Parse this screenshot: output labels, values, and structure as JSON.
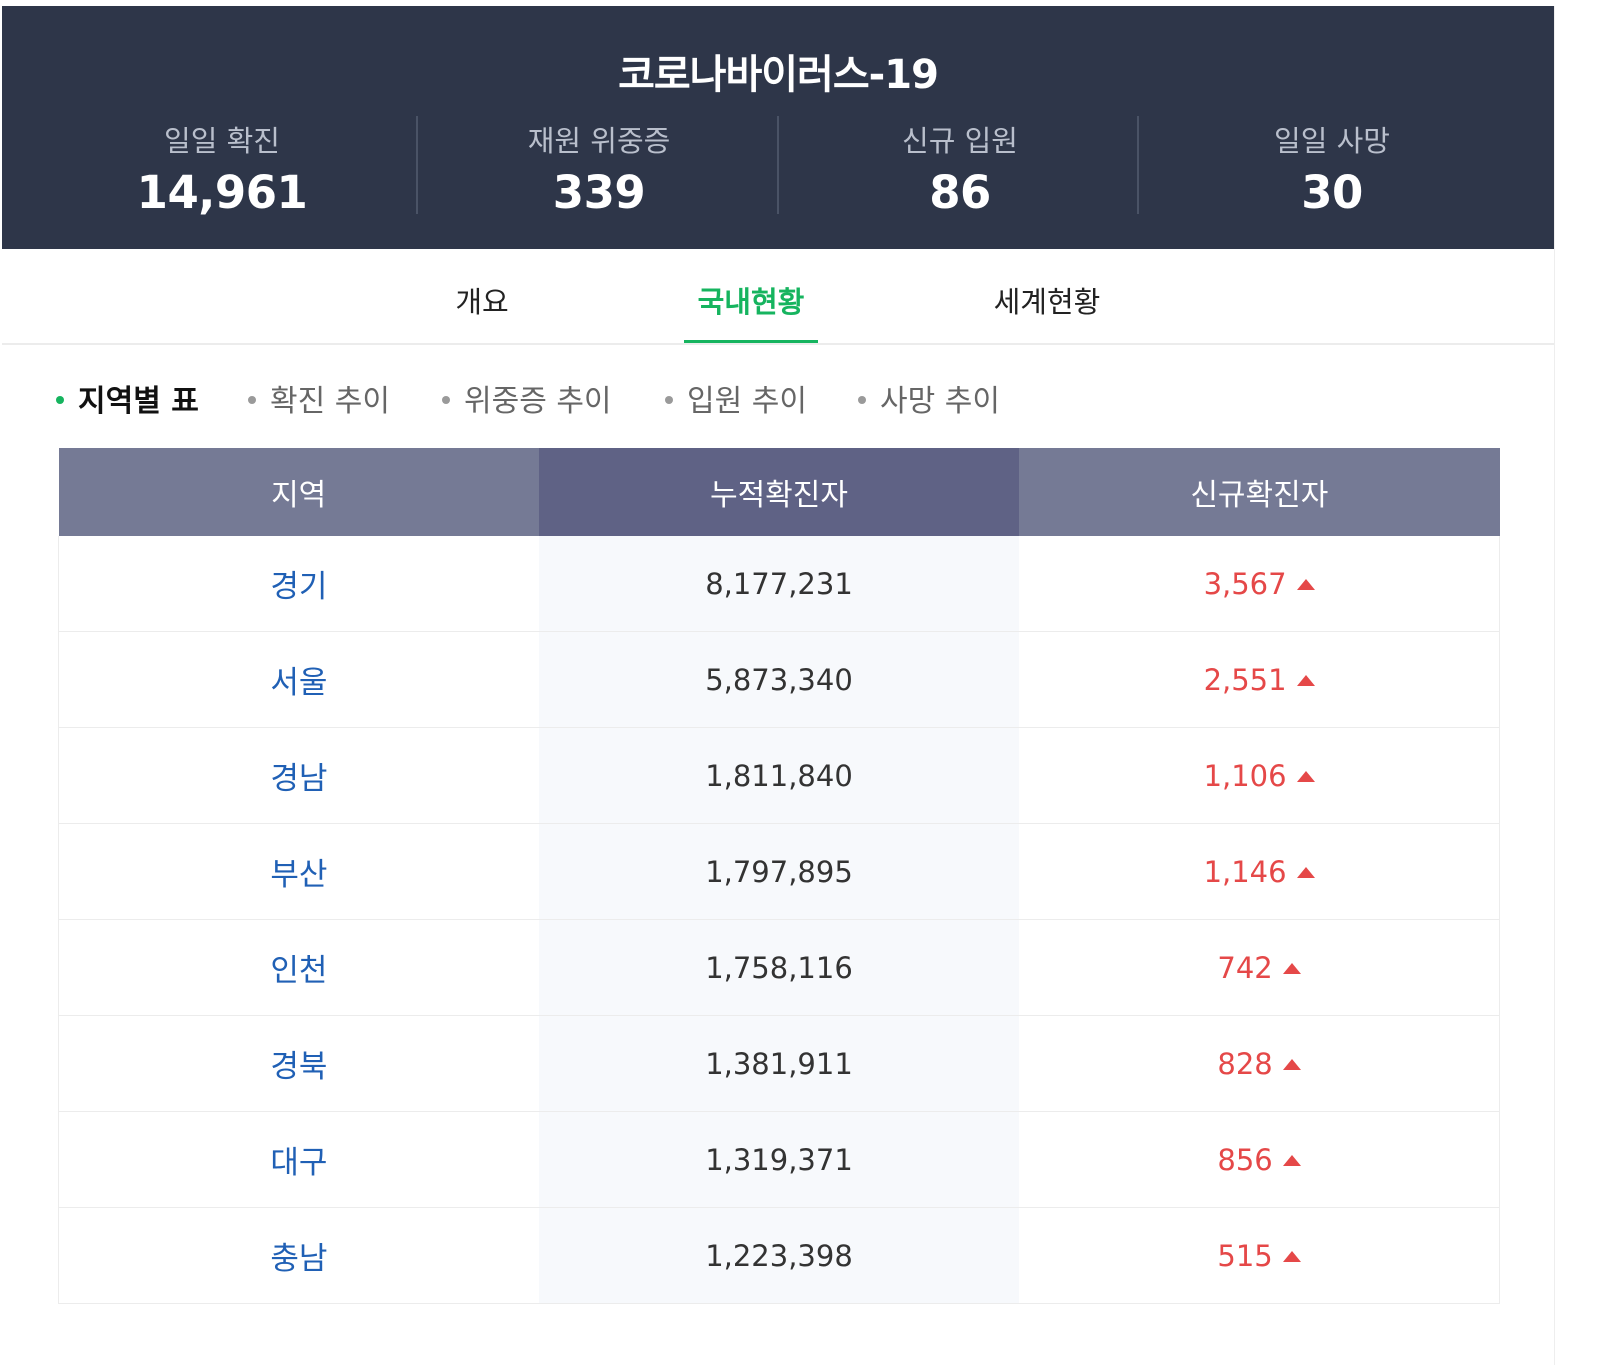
{
  "header": {
    "title": "코로나바이러스-19",
    "stats": [
      {
        "label": "일일 확진",
        "value": "14,961"
      },
      {
        "label": "재원 위중증",
        "value": "339"
      },
      {
        "label": "신규 입원",
        "value": "86"
      },
      {
        "label": "일일 사망",
        "value": "30"
      }
    ]
  },
  "tabs": [
    "개요",
    "국내현황",
    "세계현황"
  ],
  "active_tab": "국내현황",
  "subtabs": [
    "지역별 표",
    "확진 추이",
    "위중증 추이",
    "입원 추이",
    "사망 추이"
  ],
  "active_subtab": "지역별 표",
  "table": {
    "headers": [
      "지역",
      "누적확진자",
      "신규확진자"
    ],
    "rows": [
      {
        "region": "경기",
        "total": "8,177,231",
        "new": "3,567"
      },
      {
        "region": "서울",
        "total": "5,873,340",
        "new": "2,551"
      },
      {
        "region": "경남",
        "total": "1,811,840",
        "new": "1,106"
      },
      {
        "region": "부산",
        "total": "1,797,895",
        "new": "1,146"
      },
      {
        "region": "인천",
        "total": "1,758,116",
        "new": "742"
      },
      {
        "region": "경북",
        "total": "1,381,911",
        "new": "828"
      },
      {
        "region": "대구",
        "total": "1,319,371",
        "new": "856"
      },
      {
        "region": "충남",
        "total": "1,223,398",
        "new": "515"
      }
    ]
  },
  "colors": {
    "header_bg": "#2e3649",
    "accent": "#16b45f",
    "region_link": "#2060b5",
    "increase": "#e54848"
  }
}
